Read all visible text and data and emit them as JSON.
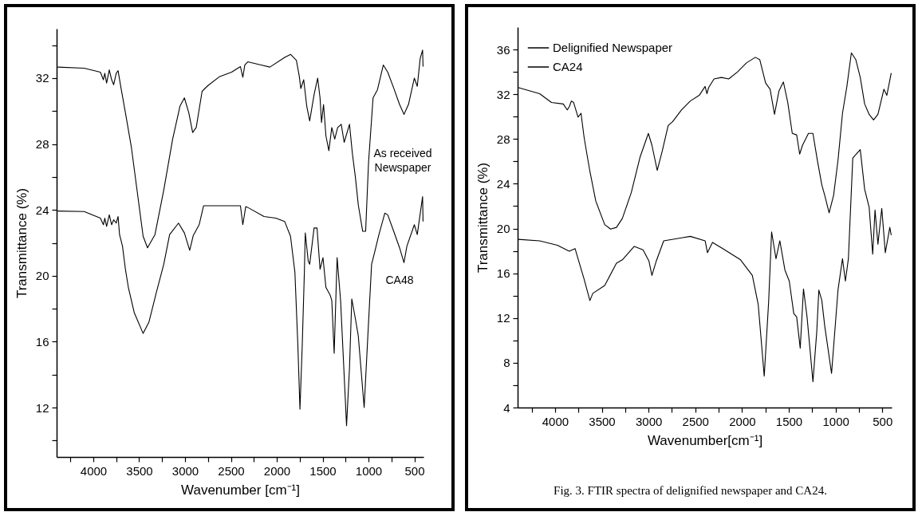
{
  "chart_data": [
    {
      "type": "line",
      "xlabel": "Wavenumber [cm⁻¹]",
      "ylabel": "Transmittance (%)",
      "xlim": [
        4400,
        400
      ],
      "ylim": [
        9,
        35
      ],
      "xticks": [
        {
          "value": 4250,
          "label": null
        },
        4000,
        {
          "value": 3750,
          "label": null
        },
        3500,
        {
          "value": 3250,
          "label": null
        },
        3000,
        {
          "value": 2750,
          "label": null
        },
        2500,
        {
          "value": 2250,
          "label": null
        },
        2000,
        {
          "value": 1750,
          "label": null
        },
        1500,
        {
          "value": 1250,
          "label": null
        },
        1000,
        {
          "value": 750,
          "label": null
        },
        500
      ],
      "yticks": [
        {
          "value": 10,
          "label": null
        },
        12,
        {
          "value": 14,
          "label": null
        },
        16,
        {
          "value": 18,
          "label": null
        },
        20,
        {
          "value": 22,
          "label": null
        },
        24,
        {
          "value": 26,
          "label": null
        },
        28,
        {
          "value": 30,
          "label": null
        },
        32,
        {
          "value": 34,
          "label": null
        }
      ],
      "grid": false,
      "legend": false,
      "marker": "none",
      "line_style": "solid",
      "series": [
        {
          "name": "As received\nNewspaper",
          "color": "#000000",
          "x": [
            4389,
            4100,
            3923,
            3890,
            3875,
            3855,
            3826,
            3800,
            3778,
            3750,
            3730,
            3698,
            3650,
            3585,
            3521,
            3457,
            3409,
            3328,
            3232,
            3135,
            3055,
            3007,
            2959,
            2917,
            2878,
            2814,
            2750,
            2621,
            2493,
            2396,
            2370,
            2348,
            2316,
            2171,
            2075,
            1914,
            1850,
            1786,
            1754,
            1738,
            1706,
            1673,
            1641,
            1593,
            1554,
            1528,
            1512,
            1490,
            1464,
            1432,
            1400,
            1368,
            1336,
            1297,
            1265,
            1207,
            1175,
            1143,
            1111,
            1063,
            1031,
            999,
            950,
            902,
            838,
            790,
            725,
            661,
            613,
            564,
            500,
            468,
            436,
            410,
            405
          ],
          "values": [
            32.67,
            32.6,
            32.36,
            31.9,
            32.3,
            31.7,
            32.5,
            31.9,
            31.6,
            32.3,
            32.45,
            31.4,
            29.9,
            27.8,
            25.1,
            22.4,
            21.7,
            22.5,
            25.2,
            28.3,
            30.3,
            30.8,
            29.9,
            28.7,
            29.0,
            31.2,
            31.55,
            32.1,
            32.36,
            32.7,
            32.05,
            32.8,
            32.99,
            32.8,
            32.67,
            33.26,
            33.44,
            33.08,
            32.1,
            31.37,
            31.9,
            30.3,
            29.4,
            31.0,
            32.0,
            30.8,
            29.3,
            30.4,
            28.5,
            27.6,
            29.0,
            28.3,
            29.0,
            29.2,
            28.1,
            29.2,
            27.4,
            26.0,
            24.3,
            22.7,
            22.7,
            26.9,
            30.8,
            31.3,
            32.8,
            32.36,
            31.4,
            30.4,
            29.8,
            30.4,
            32.0,
            31.5,
            33.2,
            33.7,
            32.7
          ]
        },
        {
          "name": "CA48",
          "color": "#000000",
          "x": [
            4389,
            4100,
            3923,
            3890,
            3875,
            3855,
            3826,
            3800,
            3778,
            3750,
            3730,
            3714,
            3682,
            3650,
            3618,
            3553,
            3457,
            3393,
            3312,
            3232,
            3168,
            3071,
            3007,
            2949,
            2910,
            2846,
            2798,
            2557,
            2396,
            2370,
            2338,
            2300,
            2139,
            2011,
            1914,
            1850,
            1802,
            1770,
            1747,
            1722,
            1699,
            1689,
            1657,
            1641,
            1593,
            1561,
            1528,
            1496,
            1464,
            1416,
            1400,
            1374,
            1342,
            1304,
            1239,
            1207,
            1182,
            1143,
            1111,
            1047,
            999,
            966,
            934,
            886,
            822,
            790,
            725,
            661,
            613,
            581,
            500,
            468,
            410,
            405
          ],
          "values": [
            23.93,
            23.9,
            23.5,
            23.1,
            23.5,
            23.0,
            23.7,
            23.1,
            23.4,
            23.2,
            23.6,
            22.5,
            21.8,
            20.4,
            19.3,
            17.75,
            16.5,
            17.2,
            19.0,
            20.7,
            22.5,
            23.2,
            22.6,
            21.55,
            22.45,
            23.1,
            24.25,
            24.25,
            24.25,
            23.1,
            24.2,
            24.1,
            23.6,
            23.5,
            23.3,
            22.4,
            20.2,
            15.8,
            11.9,
            15.8,
            20.2,
            22.6,
            20.9,
            20.7,
            22.9,
            22.9,
            20.4,
            21.1,
            19.3,
            18.8,
            18.5,
            15.3,
            21.1,
            18.5,
            10.9,
            14.4,
            18.6,
            17.4,
            16.35,
            12.0,
            17.2,
            20.7,
            21.4,
            22.5,
            23.8,
            23.7,
            22.7,
            21.7,
            20.8,
            21.8,
            23.1,
            22.5,
            24.8,
            23.3
          ]
        }
      ]
    },
    {
      "type": "line",
      "xlabel": "Wavenumber[cm⁻¹]",
      "ylabel": "Transmittance (%)",
      "xlim": [
        4400,
        400
      ],
      "ylim": [
        4,
        38
      ],
      "xticks": [
        {
          "value": 4250,
          "label": null
        },
        4000,
        {
          "value": 3750,
          "label": null
        },
        3500,
        {
          "value": 3250,
          "label": null
        },
        3000,
        {
          "value": 2750,
          "label": null
        },
        2500,
        {
          "value": 2250,
          "label": null
        },
        2000,
        {
          "value": 1750,
          "label": null
        },
        1500,
        {
          "value": 1250,
          "label": null
        },
        1000,
        {
          "value": 750,
          "label": null
        },
        500
      ],
      "yticks": [
        4,
        {
          "value": 6,
          "label": null
        },
        8,
        {
          "value": 10,
          "label": null
        },
        12,
        {
          "value": 14,
          "label": null
        },
        16,
        {
          "value": 18,
          "label": null
        },
        20,
        {
          "value": 22,
          "label": null
        },
        24,
        {
          "value": 26,
          "label": null
        },
        28,
        {
          "value": 30,
          "label": null
        },
        32,
        {
          "value": 34,
          "label": null
        },
        36
      ],
      "grid": false,
      "legend": "top left",
      "marker": "none",
      "line_style": "solid",
      "annotations": [
        "Fig. 3. FTIR spectra of delignified newspaper and CA24."
      ],
      "series": [
        {
          "name": "Delignified Newspaper",
          "color": "#000000",
          "x": [
            4395,
            4164,
            4038,
            3912,
            3870,
            3848,
            3825,
            3801,
            3754,
            3722,
            3690,
            3659,
            3627,
            3564,
            3469,
            3406,
            3343,
            3280,
            3185,
            3090,
            3002,
            2964,
            2907,
            2854,
            2790,
            2743,
            2648,
            2553,
            2458,
            2395,
            2376,
            2357,
            2300,
            2221,
            2143,
            2048,
            1953,
            1858,
            1811,
            1748,
            1700,
            1653,
            1605,
            1558,
            1511,
            1463,
            1416,
            1384,
            1353,
            1290,
            1242,
            1195,
            1147,
            1116,
            1069,
            1021,
            974,
            926,
            879,
            831,
            784,
            736,
            689,
            641,
            594,
            547,
            483,
            452,
            405
          ],
          "values": [
            32.6,
            32.05,
            31.26,
            31.13,
            30.6,
            30.87,
            31.4,
            31.26,
            29.95,
            30.3,
            28.2,
            26.65,
            25.1,
            22.45,
            20.35,
            19.95,
            20.1,
            20.9,
            23.2,
            26.4,
            28.5,
            27.45,
            25.2,
            26.9,
            29.2,
            29.55,
            30.6,
            31.4,
            31.9,
            32.7,
            32.05,
            32.6,
            33.37,
            33.5,
            33.37,
            34.0,
            34.8,
            35.3,
            35.1,
            33.0,
            32.45,
            30.2,
            32.3,
            33.1,
            31.26,
            28.5,
            28.37,
            26.65,
            27.45,
            28.5,
            28.5,
            26.1,
            23.9,
            22.97,
            21.4,
            22.97,
            26.1,
            30.3,
            32.7,
            35.7,
            35.1,
            33.5,
            31.13,
            30.2,
            29.7,
            30.2,
            32.45,
            31.9,
            33.9
          ]
        },
        {
          "name": "CA24",
          "color": "#000000",
          "x": [
            4395,
            4164,
            3975,
            3848,
            3785,
            3754,
            3690,
            3627,
            3596,
            3469,
            3343,
            3280,
            3153,
            3059,
            2996,
            2964,
            2917,
            2838,
            2648,
            2553,
            2395,
            2370,
            2316,
            2206,
            2111,
            2016,
            1890,
            1827,
            1763,
            1716,
            1684,
            1637,
            1596,
            1542,
            1495,
            1447,
            1416,
            1378,
            1343,
            1305,
            1242,
            1201,
            1179,
            1147,
            1116,
            1043,
            974,
            926,
            895,
            863,
            816,
            736,
            689,
            641,
            603,
            578,
            547,
            506,
            468,
            420,
            405
          ],
          "values": [
            19.03,
            18.9,
            18.5,
            17.97,
            18.2,
            17.3,
            15.5,
            13.56,
            14.2,
            14.9,
            16.9,
            17.2,
            18.4,
            18.1,
            17.1,
            15.8,
            17.1,
            18.9,
            19.16,
            19.3,
            18.9,
            17.84,
            18.76,
            18.2,
            17.7,
            17.2,
            15.8,
            13.2,
            6.8,
            13.4,
            19.7,
            17.3,
            18.9,
            16.3,
            15.3,
            12.4,
            12.1,
            9.3,
            14.6,
            12.1,
            6.3,
            10.8,
            14.5,
            13.56,
            11.3,
            7.05,
            14.5,
            17.3,
            15.3,
            17.3,
            26.3,
            27.05,
            23.5,
            21.9,
            17.7,
            21.65,
            18.6,
            21.8,
            17.84,
            20.1,
            19.4
          ]
        }
      ]
    }
  ]
}
